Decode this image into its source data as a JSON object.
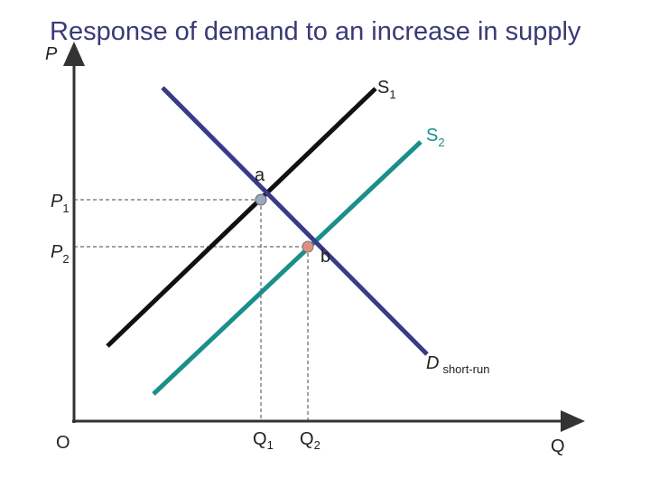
{
  "title": "Response of demand to an increase in supply",
  "axes": {
    "y_label": "P",
    "x_label": "Q",
    "origin": "O"
  },
  "curves": {
    "s1": {
      "label": "S",
      "sub": "1"
    },
    "s2": {
      "label": "S",
      "sub": "2"
    },
    "d": {
      "label": "D",
      "sub": "short-run"
    }
  },
  "points": {
    "a": {
      "label": "a",
      "price": {
        "label": "P",
        "sub": "1"
      },
      "quantity": {
        "label": "Q",
        "sub": "1"
      }
    },
    "b": {
      "label": "b",
      "price": {
        "label": "P",
        "sub": "2"
      },
      "quantity": {
        "label": "Q",
        "sub": "2"
      }
    }
  }
}
